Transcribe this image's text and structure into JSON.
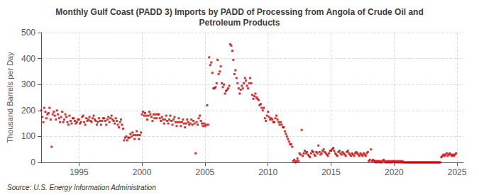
{
  "chart_data": {
    "type": "scatter",
    "title": "Monthly Gulf Coast (PADD 3) Imports by PADD of Processing from Angola of Crude Oil and\nPetroleum Products",
    "ylabel": "Thousand Barrels per Day",
    "annotations": [
      "Source: U.S. Energy Information Administration"
    ],
    "color": "#cc0000",
    "marker": "square",
    "grid": true,
    "xlim": [
      1992.0,
      2025.5
    ],
    "ylim": [
      0,
      500
    ],
    "xticks": [
      1995,
      2000,
      2005,
      2010,
      2015,
      2020,
      2025
    ],
    "yticks": [
      0,
      100,
      200,
      300,
      400,
      500
    ],
    "x": [
      1992.0,
      1992.083,
      1992.167,
      1992.25,
      1992.333,
      1992.417,
      1992.5,
      1992.583,
      1992.667,
      1992.75,
      1992.833,
      1992.917,
      1993.0,
      1993.083,
      1993.167,
      1993.25,
      1993.333,
      1993.417,
      1993.5,
      1993.583,
      1993.667,
      1993.75,
      1993.833,
      1993.917,
      1994.0,
      1994.083,
      1994.167,
      1994.25,
      1994.333,
      1994.417,
      1994.5,
      1994.583,
      1994.667,
      1994.75,
      1994.833,
      1994.917,
      1995.0,
      1995.083,
      1995.167,
      1995.25,
      1995.333,
      1995.417,
      1995.5,
      1995.583,
      1995.667,
      1995.75,
      1995.833,
      1995.917,
      1996.0,
      1996.083,
      1996.167,
      1996.25,
      1996.333,
      1996.417,
      1996.5,
      1996.583,
      1996.667,
      1996.75,
      1996.833,
      1996.917,
      1997.0,
      1997.083,
      1997.167,
      1997.25,
      1997.333,
      1997.417,
      1997.5,
      1997.583,
      1997.667,
      1997.75,
      1997.833,
      1997.917,
      1998.0,
      1998.083,
      1998.167,
      1998.25,
      1998.333,
      1998.417,
      1998.5,
      1998.583,
      1998.667,
      1998.75,
      1998.833,
      1998.917,
      1999.0,
      1999.083,
      1999.167,
      1999.25,
      1999.333,
      1999.417,
      1999.5,
      1999.583,
      1999.667,
      1999.75,
      1999.833,
      1999.917,
      2000.0,
      2000.083,
      2000.167,
      2000.25,
      2000.333,
      2000.417,
      2000.5,
      2000.583,
      2000.667,
      2000.75,
      2000.833,
      2000.917,
      2001.0,
      2001.083,
      2001.167,
      2001.25,
      2001.333,
      2001.417,
      2001.5,
      2001.583,
      2001.667,
      2001.75,
      2001.833,
      2001.917,
      2002.0,
      2002.083,
      2002.167,
      2002.25,
      2002.333,
      2002.417,
      2002.5,
      2002.583,
      2002.667,
      2002.75,
      2002.833,
      2002.917,
      2003.0,
      2003.083,
      2003.167,
      2003.25,
      2003.333,
      2003.417,
      2003.5,
      2003.583,
      2003.667,
      2003.75,
      2003.833,
      2003.917,
      2004.0,
      2004.083,
      2004.167,
      2004.25,
      2004.333,
      2004.417,
      2004.5,
      2004.583,
      2004.667,
      2004.75,
      2004.833,
      2004.917,
      2005.0,
      2005.083,
      2005.167,
      2005.25,
      2005.333,
      2005.417,
      2005.5,
      2005.583,
      2005.667,
      2005.75,
      2005.833,
      2005.917,
      2006.0,
      2006.083,
      2006.167,
      2006.25,
      2006.333,
      2006.417,
      2006.5,
      2006.583,
      2006.667,
      2006.75,
      2006.833,
      2006.917,
      2007.0,
      2007.083,
      2007.167,
      2007.25,
      2007.333,
      2007.417,
      2007.5,
      2007.583,
      2007.667,
      2007.75,
      2007.833,
      2007.917,
      2008.0,
      2008.083,
      2008.167,
      2008.25,
      2008.333,
      2008.417,
      2008.5,
      2008.583,
      2008.667,
      2008.75,
      2008.833,
      2008.917,
      2009.0,
      2009.083,
      2009.167,
      2009.25,
      2009.333,
      2009.417,
      2009.5,
      2009.583,
      2009.667,
      2009.75,
      2009.833,
      2009.917,
      2010.0,
      2010.083,
      2010.167,
      2010.25,
      2010.333,
      2010.417,
      2010.5,
      2010.583,
      2010.667,
      2010.75,
      2010.833,
      2010.917,
      2011.0,
      2011.083,
      2011.167,
      2011.25,
      2011.333,
      2011.417,
      2011.5,
      2011.583,
      2011.667,
      2011.75,
      2011.833,
      2011.917,
      2012.0,
      2012.083,
      2012.167,
      2012.25,
      2012.333,
      2012.417,
      2012.5,
      2012.583,
      2012.667,
      2012.75,
      2012.833,
      2012.917,
      2013.0,
      2013.083,
      2013.167,
      2013.25,
      2013.333,
      2013.417,
      2013.5,
      2013.583,
      2013.667,
      2013.75,
      2013.833,
      2013.917,
      2014.0,
      2014.083,
      2014.167,
      2014.25,
      2014.333,
      2014.417,
      2014.5,
      2014.583,
      2014.667,
      2014.75,
      2014.833,
      2014.917,
      2015.0,
      2015.083,
      2015.167,
      2015.25,
      2015.333,
      2015.417,
      2015.5,
      2015.583,
      2015.667,
      2015.75,
      2015.833,
      2015.917,
      2016.0,
      2016.083,
      2016.167,
      2016.25,
      2016.333,
      2016.417,
      2016.5,
      2016.583,
      2016.667,
      2016.75,
      2016.833,
      2016.917,
      2017.0,
      2017.083,
      2017.167,
      2017.25,
      2017.333,
      2017.417,
      2017.5,
      2017.583,
      2017.667,
      2017.75,
      2017.833,
      2017.917,
      2018.0,
      2018.083,
      2018.167,
      2018.25,
      2018.333,
      2018.417,
      2018.5,
      2018.583,
      2018.667,
      2018.75,
      2018.833,
      2018.917,
      2019.0,
      2019.083,
      2019.167,
      2019.25,
      2019.333,
      2019.417,
      2019.5,
      2019.583,
      2019.667,
      2019.75,
      2019.833,
      2019.917,
      2020.0,
      2020.083,
      2020.167,
      2020.25,
      2020.333,
      2020.417,
      2020.5,
      2020.583,
      2020.667,
      2020.75,
      2020.833,
      2020.917,
      2021.0,
      2021.083,
      2021.167,
      2021.25,
      2021.333,
      2021.417,
      2021.5,
      2021.583,
      2021.667,
      2021.75,
      2021.833,
      2021.917,
      2022.0,
      2022.083,
      2022.167,
      2022.25,
      2022.333,
      2022.417,
      2022.5,
      2022.583,
      2022.667,
      2022.75,
      2022.833,
      2022.917,
      2023.0,
      2023.083,
      2023.167,
      2023.25,
      2023.333,
      2023.417,
      2023.5,
      2023.583,
      2023.667,
      2023.75,
      2023.833,
      2023.917,
      2024.0,
      2024.083,
      2024.167,
      2024.25,
      2024.333,
      2024.417,
      2024.5,
      2024.583,
      2024.667,
      2024.75,
      2024.833,
      2024.917
    ],
    "values": [
      200,
      175,
      155,
      210,
      195,
      170,
      185,
      190,
      210,
      165,
      60,
      185,
      195,
      180,
      165,
      200,
      185,
      170,
      155,
      175,
      195,
      155,
      165,
      185,
      175,
      155,
      145,
      180,
      160,
      150,
      170,
      170,
      160,
      150,
      155,
      165,
      165,
      150,
      155,
      175,
      180,
      155,
      145,
      170,
      160,
      165,
      175,
      160,
      155,
      170,
      180,
      165,
      160,
      145,
      155,
      170,
      160,
      145,
      160,
      170,
      170,
      160,
      145,
      165,
      175,
      155,
      170,
      180,
      165,
      160,
      150,
      170,
      160,
      145,
      135,
      155,
      165,
      145,
      130,
      85,
      95,
      100,
      85,
      95,
      95,
      110,
      100,
      115,
      105,
      90,
      105,
      120,
      105,
      90,
      105,
      115,
      185,
      195,
      180,
      190,
      180,
      165,
      180,
      195,
      185,
      175,
      160,
      185,
      170,
      185,
      170,
      185,
      185,
      170,
      160,
      175,
      165,
      150,
      165,
      180,
      160,
      150,
      165,
      180,
      160,
      145,
      165,
      175,
      155,
      140,
      155,
      170,
      155,
      140,
      155,
      165,
      150,
      135,
      150,
      165,
      155,
      145,
      150,
      165,
      145,
      160,
      150,
      35,
      155,
      145,
      170,
      180,
      160,
      150,
      140,
      150,
      140,
      145,
      220,
      145,
      405,
      375,
      385,
      345,
      285,
      285,
      290,
      305,
      395,
      340,
      350,
      370,
      305,
      290,
      300,
      265,
      275,
      280,
      285,
      295,
      455,
      450,
      430,
      395,
      340,
      355,
      325,
      305,
      285,
      265,
      280,
      295,
      285,
      305,
      325,
      315,
      295,
      285,
      305,
      325,
      305,
      260,
      245,
      255,
      265,
      250,
      245,
      240,
      220,
      225,
      210,
      200,
      210,
      170,
      160,
      180,
      195,
      175,
      165,
      170,
      165,
      155,
      155,
      170,
      180,
      165,
      155,
      145,
      155,
      145,
      135,
      135,
      120,
      110,
      100,
      90,
      80,
      70,
      70,
      60,
      5,
      10,
      0,
      5,
      15,
      5,
      35,
      30,
      125,
      25,
      35,
      45,
      35,
      40,
      30,
      25,
      20,
      35,
      45,
      40,
      30,
      25,
      40,
      35,
      65,
      40,
      30,
      35,
      45,
      50,
      40,
      35,
      30,
      25,
      35,
      45,
      45,
      50,
      55,
      45,
      35,
      30,
      25,
      40,
      45,
      35,
      30,
      40,
      35,
      30,
      25,
      40,
      45,
      35,
      30,
      25,
      35,
      30,
      25,
      35,
      40,
      35,
      30,
      25,
      35,
      30,
      25,
      35,
      30,
      25,
      35,
      40,
      5,
      10,
      50,
      5,
      10,
      5,
      5,
      0,
      5,
      5,
      0,
      5,
      0,
      5,
      10,
      5,
      0,
      5,
      0,
      5,
      0,
      5,
      0,
      5,
      5,
      0,
      5,
      0,
      5,
      0,
      5,
      0,
      5,
      0,
      0,
      0,
      0,
      0,
      0,
      0,
      0,
      0,
      0,
      0,
      0,
      0,
      0,
      0,
      0,
      0,
      0,
      0,
      0,
      0,
      0,
      0,
      0,
      0,
      0,
      0,
      0,
      0,
      0,
      0,
      0,
      0,
      0,
      0,
      0,
      20,
      25,
      30,
      25,
      30,
      35,
      25,
      30,
      35,
      30,
      25,
      30,
      25,
      30,
      35
    ]
  }
}
